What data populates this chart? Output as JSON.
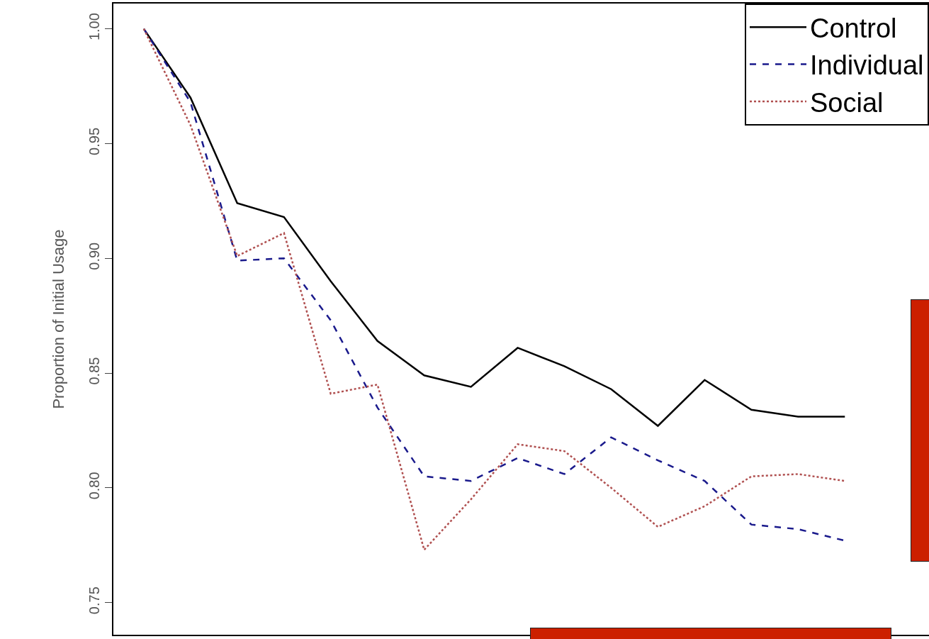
{
  "chart_data": {
    "type": "line",
    "ylabel": "Proportion of Initial Usage",
    "categories": [
      null,
      null,
      null,
      null,
      null,
      null,
      null,
      null,
      null,
      null,
      null,
      null,
      null,
      null,
      null,
      null
    ],
    "ylim": [
      0.736,
      1.011
    ],
    "yticks": [
      {
        "value": 0.75,
        "label": "0.75"
      },
      {
        "value": 0.8,
        "label": "0.80"
      },
      {
        "value": 0.85,
        "label": "0.85"
      },
      {
        "value": 0.9,
        "label": "0.90"
      },
      {
        "value": 0.95,
        "label": "0.95"
      },
      {
        "value": 1,
        "label": "1.00"
      }
    ],
    "grid": false,
    "legend": "top right",
    "marker": "none",
    "tick_labels": "y",
    "series": [
      {
        "name": "Control",
        "color": "#000000",
        "line_style": "solid",
        "values": [
          1.0,
          0.97,
          0.924,
          0.918,
          0.89,
          0.864,
          0.849,
          0.844,
          0.861,
          0.853,
          0.843,
          0.827,
          0.847,
          0.834,
          0.831,
          0.831
        ]
      },
      {
        "name": "Individual",
        "color": "#1a1a8c",
        "line_style": "dashed",
        "values": [
          1.0,
          0.968,
          0.899,
          0.9,
          0.873,
          0.835,
          0.805,
          0.803,
          0.813,
          0.806,
          0.822,
          0.812,
          0.803,
          0.784,
          0.782,
          0.777
        ]
      },
      {
        "name": "Social",
        "color": "#b05050",
        "line_style": "dotted",
        "values": [
          1.0,
          0.958,
          0.901,
          0.911,
          0.841,
          0.845,
          0.773,
          0.795,
          0.819,
          0.816,
          0.8,
          0.783,
          0.792,
          0.805,
          0.806,
          0.803
        ]
      }
    ]
  }
}
